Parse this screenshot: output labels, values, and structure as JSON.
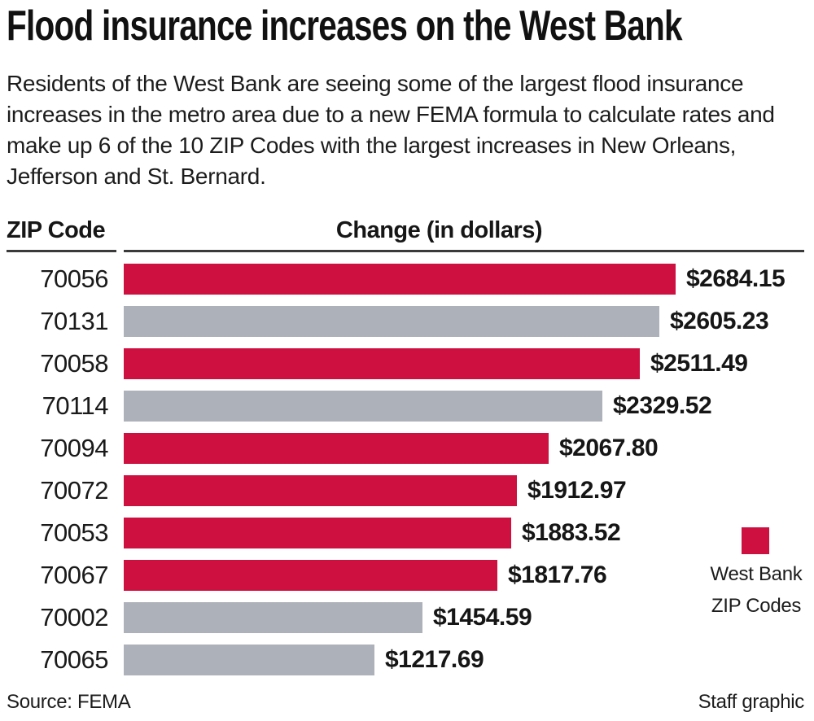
{
  "title": "Flood insurance increases on the West Bank",
  "subtitle": "Residents of the West Bank are seeing some of the largest flood insurance increases in the metro area due to a new FEMA formula to calculate rates and make up 6 of the 10 ZIP Codes with the largest increases in New Orleans, Jefferson and St. Bernard.",
  "chart_data": {
    "type": "bar",
    "orientation": "horizontal",
    "title": "Flood insurance increases on the West Bank",
    "ylabel": "ZIP Code",
    "xlabel": "Change (in dollars)",
    "grid": false,
    "xlim": [
      0,
      2684.15
    ],
    "categories": [
      "70056",
      "70131",
      "70058",
      "70114",
      "70094",
      "70072",
      "70053",
      "70067",
      "70002",
      "70065"
    ],
    "values": [
      2684.15,
      2605.23,
      2511.49,
      2329.52,
      2067.8,
      1912.97,
      1883.52,
      1817.76,
      1454.59,
      1217.69
    ],
    "value_labels": [
      "$2684.15",
      "$2605.23",
      "$2511.49",
      "$2329.52",
      "$2067.80",
      "$1912.97",
      "$1883.52",
      "$1817.76",
      "$1454.59",
      "$1217.69"
    ],
    "series_key": [
      "west_bank",
      "other",
      "west_bank",
      "other",
      "west_bank",
      "west_bank",
      "west_bank",
      "west_bank",
      "other",
      "other"
    ],
    "colors": {
      "west_bank": "#CD1040",
      "other": "#ADB1B9"
    },
    "legend": {
      "position": "right",
      "swatch_color": "#CD1040",
      "lines": [
        "West Bank",
        "ZIP Codes"
      ]
    }
  },
  "footer": {
    "source": "Source: FEMA",
    "credit": "Staff graphic"
  }
}
